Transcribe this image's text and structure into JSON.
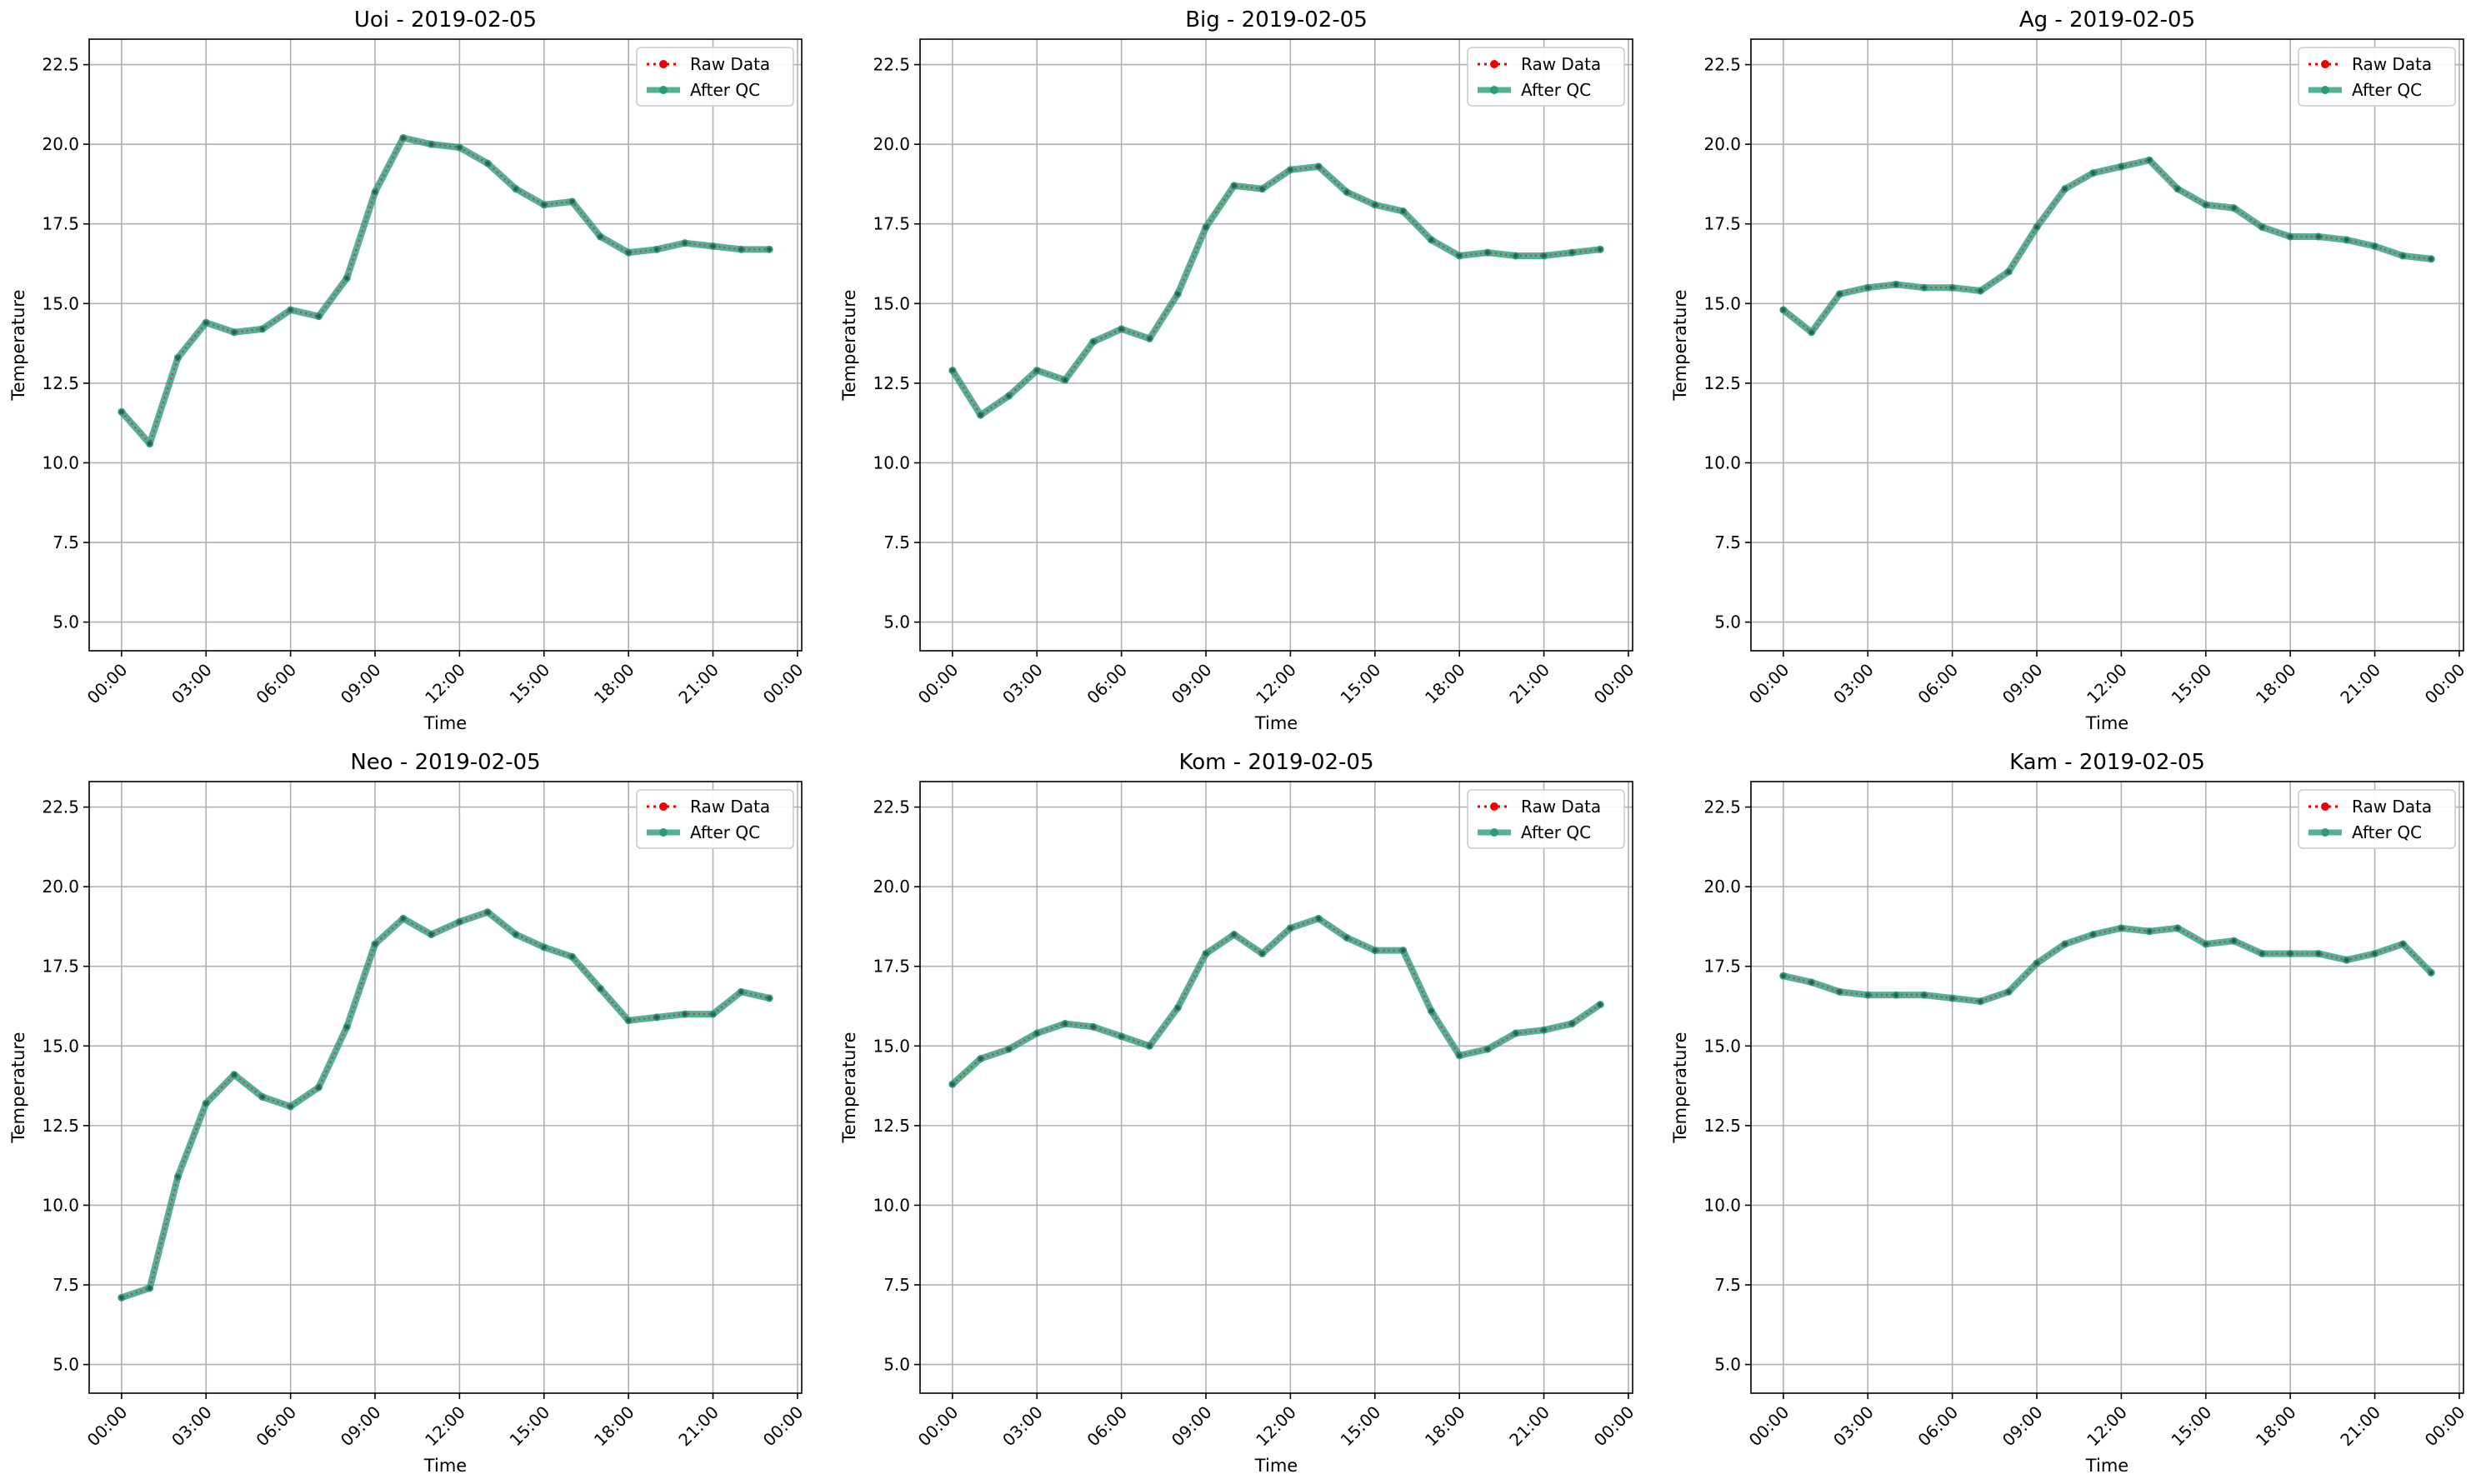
{
  "colors": {
    "raw": "#ee0000",
    "qc": "#2a9d78",
    "grid": "#b0b0b0",
    "axis": "#000000",
    "legend_border": "#cccccc"
  },
  "chart_data": [
    {
      "type": "line",
      "title": "Uoi - 2019-02-05",
      "xlabel": "Time",
      "ylabel": "Temperature",
      "ylim": [
        4.1,
        23.3
      ],
      "yticks": [
        "5.0",
        "7.5",
        "10.0",
        "12.5",
        "15.0",
        "17.5",
        "20.0",
        "22.5"
      ],
      "xlim": [
        "2019-02-05 23:00 prev",
        "next"
      ],
      "xticks": [
        "00:00",
        "03:00",
        "06:00",
        "09:00",
        "12:00",
        "15:00",
        "18:00",
        "21:00",
        "00:00"
      ],
      "grid": true,
      "legend": "top-right",
      "x": [
        "00:00",
        "01:00",
        "02:00",
        "03:00",
        "04:00",
        "05:00",
        "06:00",
        "07:00",
        "08:00",
        "09:00",
        "10:00",
        "11:00",
        "12:00",
        "13:00",
        "14:00",
        "15:00",
        "16:00",
        "17:00",
        "18:00",
        "19:00",
        "20:00",
        "21:00",
        "22:00",
        "23:00"
      ],
      "series": [
        {
          "name": "Raw Data",
          "values": [
            11.6,
            10.6,
            13.3,
            14.4,
            14.1,
            14.2,
            14.8,
            14.6,
            15.8,
            18.5,
            20.2,
            20.0,
            19.9,
            19.4,
            18.6,
            18.1,
            18.2,
            17.1,
            16.6,
            16.7,
            16.9,
            16.8,
            16.7,
            16.7
          ]
        },
        {
          "name": "After QC",
          "values": [
            11.6,
            10.6,
            13.3,
            14.4,
            14.1,
            14.2,
            14.8,
            14.6,
            15.8,
            18.5,
            20.2,
            20.0,
            19.9,
            19.4,
            18.6,
            18.1,
            18.2,
            17.1,
            16.6,
            16.7,
            16.9,
            16.8,
            16.7,
            16.7
          ]
        }
      ]
    },
    {
      "type": "line",
      "title": "Big - 2019-02-05",
      "xlabel": "Time",
      "ylabel": "Temperature",
      "ylim": [
        4.1,
        23.3
      ],
      "yticks": [
        "5.0",
        "7.5",
        "10.0",
        "12.5",
        "15.0",
        "17.5",
        "20.0",
        "22.5"
      ],
      "xticks": [
        "00:00",
        "03:00",
        "06:00",
        "09:00",
        "12:00",
        "15:00",
        "18:00",
        "21:00",
        "00:00"
      ],
      "grid": true,
      "legend": "top-right",
      "x": [
        "00:00",
        "01:00",
        "02:00",
        "03:00",
        "04:00",
        "05:00",
        "06:00",
        "07:00",
        "08:00",
        "09:00",
        "10:00",
        "11:00",
        "12:00",
        "13:00",
        "14:00",
        "15:00",
        "16:00",
        "17:00",
        "18:00",
        "19:00",
        "20:00",
        "21:00",
        "22:00",
        "23:00"
      ],
      "series": [
        {
          "name": "Raw Data",
          "values": [
            12.9,
            11.5,
            12.1,
            12.9,
            12.6,
            13.8,
            14.2,
            13.9,
            15.3,
            17.4,
            18.7,
            18.6,
            19.2,
            19.3,
            18.5,
            18.1,
            17.9,
            17.0,
            16.5,
            16.6,
            16.5,
            16.5,
            16.6,
            16.7
          ]
        },
        {
          "name": "After QC",
          "values": [
            12.9,
            11.5,
            12.1,
            12.9,
            12.6,
            13.8,
            14.2,
            13.9,
            15.3,
            17.4,
            18.7,
            18.6,
            19.2,
            19.3,
            18.5,
            18.1,
            17.9,
            17.0,
            16.5,
            16.6,
            16.5,
            16.5,
            16.6,
            16.7
          ]
        }
      ]
    },
    {
      "type": "line",
      "title": "Ag - 2019-02-05",
      "xlabel": "Time",
      "ylabel": "Temperature",
      "ylim": [
        4.1,
        23.3
      ],
      "yticks": [
        "5.0",
        "7.5",
        "10.0",
        "12.5",
        "15.0",
        "17.5",
        "20.0",
        "22.5"
      ],
      "xticks": [
        "00:00",
        "03:00",
        "06:00",
        "09:00",
        "12:00",
        "15:00",
        "18:00",
        "21:00",
        "00:00"
      ],
      "grid": true,
      "legend": "top-right",
      "x": [
        "00:00",
        "01:00",
        "02:00",
        "03:00",
        "04:00",
        "05:00",
        "06:00",
        "07:00",
        "08:00",
        "09:00",
        "10:00",
        "11:00",
        "12:00",
        "13:00",
        "14:00",
        "15:00",
        "16:00",
        "17:00",
        "18:00",
        "19:00",
        "20:00",
        "21:00",
        "22:00",
        "23:00"
      ],
      "series": [
        {
          "name": "Raw Data",
          "values": [
            14.8,
            14.1,
            15.3,
            15.5,
            15.6,
            15.5,
            15.5,
            15.4,
            16.0,
            17.4,
            18.6,
            19.1,
            19.3,
            19.5,
            18.6,
            18.1,
            18.0,
            17.4,
            17.1,
            17.1,
            17.0,
            16.8,
            16.5,
            16.4
          ]
        },
        {
          "name": "After QC",
          "values": [
            14.8,
            14.1,
            15.3,
            15.5,
            15.6,
            15.5,
            15.5,
            15.4,
            16.0,
            17.4,
            18.6,
            19.1,
            19.3,
            19.5,
            18.6,
            18.1,
            18.0,
            17.4,
            17.1,
            17.1,
            17.0,
            16.8,
            16.5,
            16.4
          ]
        }
      ]
    },
    {
      "type": "line",
      "title": "Neo - 2019-02-05",
      "xlabel": "Time",
      "ylabel": "Temperature",
      "ylim": [
        4.1,
        23.3
      ],
      "yticks": [
        "5.0",
        "7.5",
        "10.0",
        "12.5",
        "15.0",
        "17.5",
        "20.0",
        "22.5"
      ],
      "xticks": [
        "00:00",
        "03:00",
        "06:00",
        "09:00",
        "12:00",
        "15:00",
        "18:00",
        "21:00",
        "00:00"
      ],
      "grid": true,
      "legend": "top-right",
      "x": [
        "00:00",
        "01:00",
        "02:00",
        "03:00",
        "04:00",
        "05:00",
        "06:00",
        "07:00",
        "08:00",
        "09:00",
        "10:00",
        "11:00",
        "12:00",
        "13:00",
        "14:00",
        "15:00",
        "16:00",
        "17:00",
        "18:00",
        "19:00",
        "20:00",
        "21:00",
        "22:00",
        "23:00"
      ],
      "series": [
        {
          "name": "Raw Data",
          "values": [
            7.1,
            7.4,
            10.9,
            13.2,
            14.1,
            13.4,
            13.1,
            13.7,
            15.6,
            18.2,
            19.0,
            18.5,
            18.9,
            19.2,
            18.5,
            18.1,
            17.8,
            16.8,
            15.8,
            15.9,
            16.0,
            16.0,
            16.7,
            16.5
          ]
        },
        {
          "name": "After QC",
          "values": [
            7.1,
            7.4,
            10.9,
            13.2,
            14.1,
            13.4,
            13.1,
            13.7,
            15.6,
            18.2,
            19.0,
            18.5,
            18.9,
            19.2,
            18.5,
            18.1,
            17.8,
            16.8,
            15.8,
            15.9,
            16.0,
            16.0,
            16.7,
            16.5
          ]
        }
      ]
    },
    {
      "type": "line",
      "title": "Kom - 2019-02-05",
      "xlabel": "Time",
      "ylabel": "Temperature",
      "ylim": [
        4.1,
        23.3
      ],
      "yticks": [
        "5.0",
        "7.5",
        "10.0",
        "12.5",
        "15.0",
        "17.5",
        "20.0",
        "22.5"
      ],
      "xticks": [
        "00:00",
        "03:00",
        "06:00",
        "09:00",
        "12:00",
        "15:00",
        "18:00",
        "21:00",
        "00:00"
      ],
      "grid": true,
      "legend": "top-right",
      "x": [
        "00:00",
        "01:00",
        "02:00",
        "03:00",
        "04:00",
        "05:00",
        "06:00",
        "07:00",
        "08:00",
        "09:00",
        "10:00",
        "11:00",
        "12:00",
        "13:00",
        "14:00",
        "15:00",
        "16:00",
        "17:00",
        "18:00",
        "19:00",
        "20:00",
        "21:00",
        "22:00",
        "23:00"
      ],
      "series": [
        {
          "name": "Raw Data",
          "values": [
            13.8,
            14.6,
            14.9,
            15.4,
            15.7,
            15.6,
            15.3,
            15.0,
            16.2,
            17.9,
            18.5,
            17.9,
            18.7,
            19.0,
            18.4,
            18.0,
            18.0,
            16.1,
            14.7,
            14.9,
            15.4,
            15.5,
            15.7,
            16.3
          ]
        },
        {
          "name": "After QC",
          "values": [
            13.8,
            14.6,
            14.9,
            15.4,
            15.7,
            15.6,
            15.3,
            15.0,
            16.2,
            17.9,
            18.5,
            17.9,
            18.7,
            19.0,
            18.4,
            18.0,
            18.0,
            16.1,
            14.7,
            14.9,
            15.4,
            15.5,
            15.7,
            16.3
          ]
        }
      ]
    },
    {
      "type": "line",
      "title": "Kam - 2019-02-05",
      "xlabel": "Time",
      "ylabel": "Temperature",
      "ylim": [
        4.1,
        23.3
      ],
      "yticks": [
        "5.0",
        "7.5",
        "10.0",
        "12.5",
        "15.0",
        "17.5",
        "20.0",
        "22.5"
      ],
      "xticks": [
        "00:00",
        "03:00",
        "06:00",
        "09:00",
        "12:00",
        "15:00",
        "18:00",
        "21:00",
        "00:00"
      ],
      "grid": true,
      "legend": "top-right",
      "x": [
        "00:00",
        "01:00",
        "02:00",
        "03:00",
        "04:00",
        "05:00",
        "06:00",
        "07:00",
        "08:00",
        "09:00",
        "10:00",
        "11:00",
        "12:00",
        "13:00",
        "14:00",
        "15:00",
        "16:00",
        "17:00",
        "18:00",
        "19:00",
        "20:00",
        "21:00",
        "22:00",
        "23:00"
      ],
      "series": [
        {
          "name": "Raw Data",
          "values": [
            17.2,
            17.0,
            16.7,
            16.6,
            16.6,
            16.6,
            16.5,
            16.4,
            16.7,
            17.6,
            18.2,
            18.5,
            18.7,
            18.6,
            18.7,
            18.2,
            18.3,
            17.9,
            17.9,
            17.9,
            17.7,
            17.9,
            18.2,
            17.3
          ]
        },
        {
          "name": "After QC",
          "values": [
            17.2,
            17.0,
            16.7,
            16.6,
            16.6,
            16.6,
            16.5,
            16.4,
            16.7,
            17.6,
            18.2,
            18.5,
            18.7,
            18.6,
            18.7,
            18.2,
            18.3,
            17.9,
            17.9,
            17.9,
            17.7,
            17.9,
            18.2,
            17.3
          ]
        }
      ]
    }
  ]
}
